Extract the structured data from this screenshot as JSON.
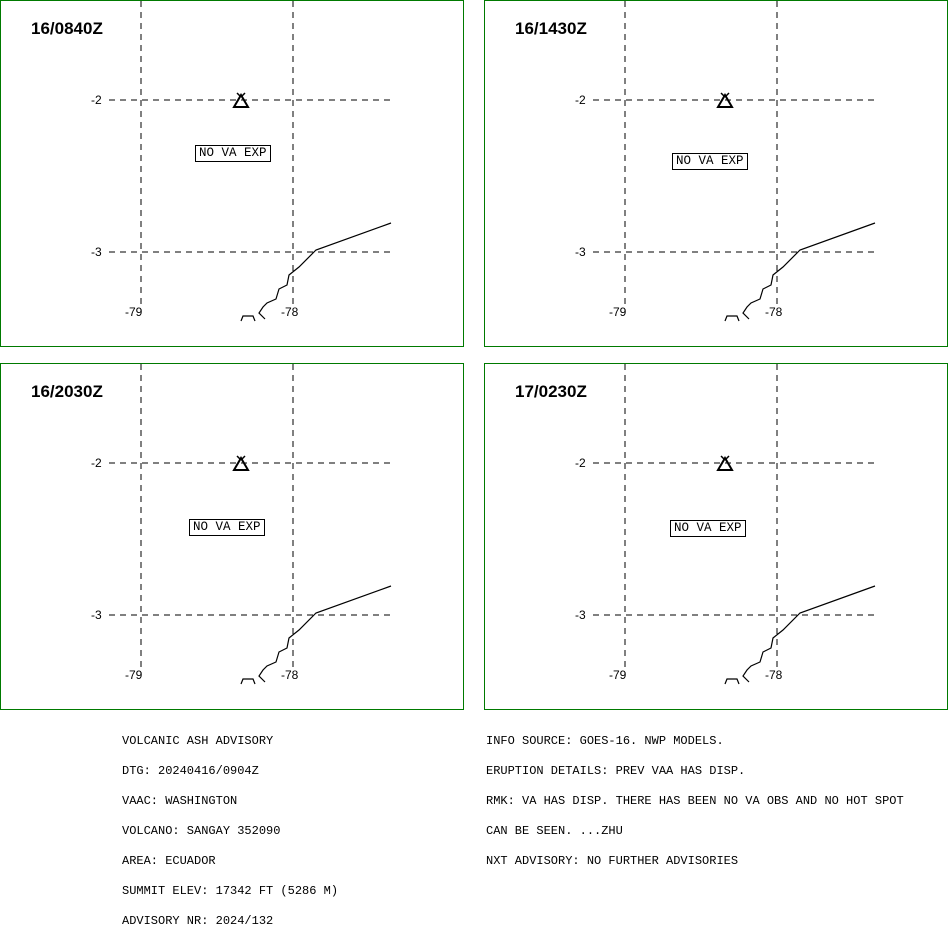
{
  "panels": [
    {
      "time": "16/0840Z",
      "label": "NO VA EXP"
    },
    {
      "time": "16/1430Z",
      "label": "NO VA EXP"
    },
    {
      "time": "16/2030Z",
      "label": "NO VA EXP"
    },
    {
      "time": "17/0230Z",
      "label": "NO VA EXP"
    }
  ],
  "axis": {
    "lat_labels": [
      "-2",
      "-3"
    ],
    "lon_labels": [
      "-79",
      "-78"
    ]
  },
  "advisory_left": [
    "VOLCANIC ASH ADVISORY",
    "DTG: 20240416/0904Z",
    "VAAC: WASHINGTON",
    "VOLCANO: SANGAY 352090",
    "AREA: ECUADOR",
    "SUMMIT ELEV: 17342 FT (5286 M)",
    "ADVISORY NR: 2024/132"
  ],
  "advisory_right": [
    "INFO SOURCE: GOES-16. NWP MODELS.",
    "ERUPTION DETAILS: PREV VAA HAS DISP.",
    "RMK: VA HAS DISP. THERE HAS BEEN NO VA OBS AND NO HOT SPOT",
    "CAN BE SEEN. ...ZHU",
    "NXT ADVISORY: NO FURTHER ADVISORIES"
  ],
  "colors": {
    "panel_border": "#007a00"
  },
  "icons": {
    "volcano": "volcano-triangle-icon"
  }
}
